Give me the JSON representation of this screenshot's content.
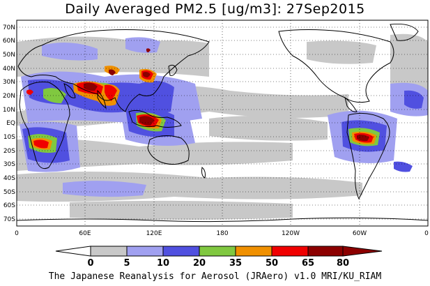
{
  "title": "Daily Averaged PM2.5 [ug/m3]: 27Sep2015",
  "lat_labels": [
    "70N",
    "60N",
    "50N",
    "40N",
    "30N",
    "20N",
    "10N",
    "EQ",
    "10S",
    "20S",
    "30S",
    "40S",
    "50S",
    "60S",
    "70S"
  ],
  "lon_labels": [
    "0",
    "60E",
    "120E",
    "180",
    "120W",
    "60W",
    "0"
  ],
  "colorbar": {
    "ticks": [
      "0",
      "5",
      "10",
      "20",
      "35",
      "50",
      "65",
      "80"
    ],
    "colors": [
      "#ffffff",
      "#c8c8c8",
      "#a0a0f0",
      "#5050e0",
      "#80c840",
      "#f09000",
      "#f00000",
      "#8c0000"
    ]
  },
  "footer": "The Japanese Reanalysis for Aerosol (JRAero) v1.0 MRI/KU_RIAM"
}
